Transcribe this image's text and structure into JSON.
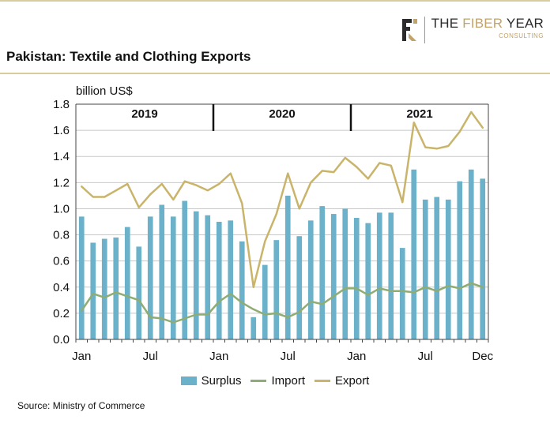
{
  "logo": {
    "name_dark": "THE",
    "name_gold": "FIBER",
    "name_dark2": "YEAR",
    "sub": "CONSULTING"
  },
  "title": "Pakistan: Textile and Clothing Exports",
  "unit_label": "billion US$",
  "source": "Source: Ministry of Commerce",
  "colors": {
    "surplus": "#6ab1c9",
    "import": "#8fac73",
    "export": "#c9b46a",
    "grid": "#c8c8c8",
    "rule": "#d8cd9c"
  },
  "chart_data": {
    "type": "bar",
    "ylim": [
      0,
      1.8
    ],
    "yticks": [
      "0.0",
      "0.2",
      "0.4",
      "0.6",
      "0.8",
      "1.0",
      "1.2",
      "1.4",
      "1.6",
      "1.8"
    ],
    "grid": true,
    "legend_position": "bottom",
    "year_labels": [
      "2019",
      "2020",
      "2021"
    ],
    "x_tick_labels": [
      {
        "index": 0,
        "label": "Jan"
      },
      {
        "index": 6,
        "label": "Jul"
      },
      {
        "index": 12,
        "label": "Jan"
      },
      {
        "index": 18,
        "label": "Jul"
      },
      {
        "index": 24,
        "label": "Jan"
      },
      {
        "index": 30,
        "label": "Jul"
      },
      {
        "index": 35,
        "label": "Dec"
      }
    ],
    "categories": [
      "Jan 2019",
      "Feb 2019",
      "Mar 2019",
      "Apr 2019",
      "May 2019",
      "Jun 2019",
      "Jul 2019",
      "Aug 2019",
      "Sep 2019",
      "Oct 2019",
      "Nov 2019",
      "Dec 2019",
      "Jan 2020",
      "Feb 2020",
      "Mar 2020",
      "Apr 2020",
      "May 2020",
      "Jun 2020",
      "Jul 2020",
      "Aug 2020",
      "Sep 2020",
      "Oct 2020",
      "Nov 2020",
      "Dec 2020",
      "Jan 2021",
      "Feb 2021",
      "Mar 2021",
      "Apr 2021",
      "May 2021",
      "Jun 2021",
      "Jul 2021",
      "Aug 2021",
      "Sep 2021",
      "Oct 2021",
      "Nov 2021",
      "Dec 2021"
    ],
    "series": [
      {
        "name": "Surplus",
        "type": "bar",
        "values": [
          0.94,
          0.74,
          0.77,
          0.78,
          0.86,
          0.71,
          0.94,
          1.03,
          0.94,
          1.06,
          0.98,
          0.95,
          0.9,
          0.91,
          0.75,
          0.17,
          0.57,
          0.76,
          1.1,
          0.79,
          0.91,
          1.02,
          0.96,
          1.0,
          0.93,
          0.89,
          0.97,
          0.97,
          0.7,
          1.3,
          1.07,
          1.09,
          1.07,
          1.21,
          1.3,
          1.23
        ]
      },
      {
        "name": "Import",
        "type": "line",
        "values": [
          0.22,
          0.35,
          0.32,
          0.36,
          0.33,
          0.3,
          0.17,
          0.16,
          0.13,
          0.16,
          0.19,
          0.19,
          0.29,
          0.35,
          0.28,
          0.23,
          0.19,
          0.2,
          0.17,
          0.21,
          0.29,
          0.27,
          0.33,
          0.39,
          0.39,
          0.34,
          0.39,
          0.37,
          0.37,
          0.36,
          0.4,
          0.37,
          0.41,
          0.39,
          0.43,
          0.4
        ]
      },
      {
        "name": "Export",
        "type": "line",
        "values": [
          1.17,
          1.09,
          1.09,
          1.14,
          1.19,
          1.01,
          1.11,
          1.19,
          1.07,
          1.21,
          1.18,
          1.14,
          1.19,
          1.27,
          1.04,
          0.4,
          0.75,
          0.96,
          1.27,
          1.0,
          1.2,
          1.29,
          1.28,
          1.39,
          1.32,
          1.23,
          1.35,
          1.33,
          1.05,
          1.66,
          1.47,
          1.46,
          1.48,
          1.59,
          1.74,
          1.62
        ]
      }
    ]
  }
}
